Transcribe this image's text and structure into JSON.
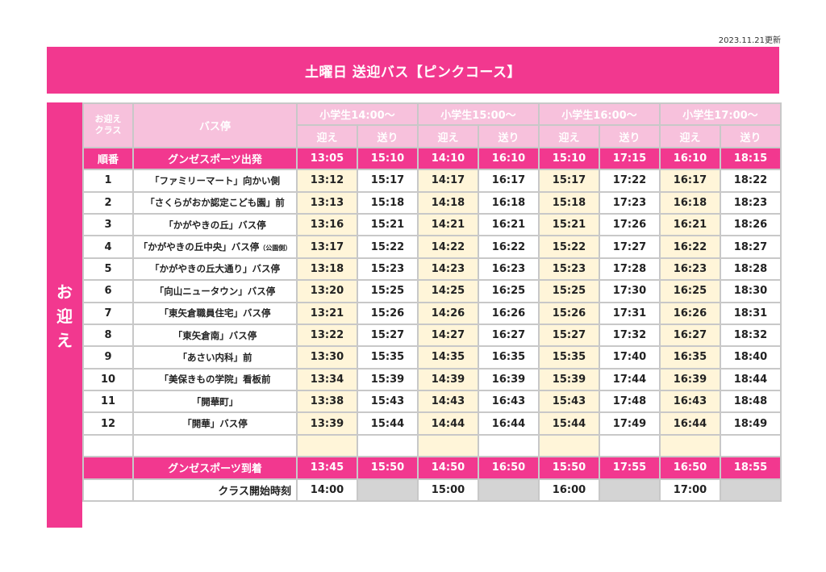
{
  "updated": "2023.11.21更新",
  "title": "土曜日 送迎バス【ピンクコース】",
  "side_label": [
    "お",
    "迎",
    "え"
  ],
  "header": {
    "order_label": "お迎え\nクラス",
    "stop_label": "バス停",
    "classes": [
      "小学生14:00〜",
      "小学生15:00〜",
      "小学生16:00〜",
      "小学生17:00〜"
    ],
    "pickup": "迎え",
    "dropoff": "送り"
  },
  "departure": {
    "num": "順番",
    "stop": "グンゼスポーツ出発",
    "times": [
      "13:05",
      "15:10",
      "14:10",
      "16:10",
      "15:10",
      "17:15",
      "16:10",
      "18:15"
    ]
  },
  "stops": [
    {
      "num": "1",
      "name": "「ファミリーマート」向かい側",
      "note": "",
      "times": [
        "13:12",
        "15:17",
        "14:17",
        "16:17",
        "15:17",
        "17:22",
        "16:17",
        "18:22"
      ]
    },
    {
      "num": "2",
      "name": "「さくらがおか認定こども園」前",
      "note": "",
      "times": [
        "13:13",
        "15:18",
        "14:18",
        "16:18",
        "15:18",
        "17:23",
        "16:18",
        "18:23"
      ]
    },
    {
      "num": "3",
      "name": "「かがやきの丘」バス停",
      "note": "",
      "times": [
        "13:16",
        "15:21",
        "14:21",
        "16:21",
        "15:21",
        "17:26",
        "16:21",
        "18:26"
      ]
    },
    {
      "num": "4",
      "name": "「かがやきの丘中央」バス停",
      "note": "（公園側）",
      "times": [
        "13:17",
        "15:22",
        "14:22",
        "16:22",
        "15:22",
        "17:27",
        "16:22",
        "18:27"
      ]
    },
    {
      "num": "5",
      "name": "「かがやきの丘大通り」バス停",
      "note": "",
      "times": [
        "13:18",
        "15:23",
        "14:23",
        "16:23",
        "15:23",
        "17:28",
        "16:23",
        "18:28"
      ]
    },
    {
      "num": "6",
      "name": "「向山ニュータウン」バス停",
      "note": "",
      "times": [
        "13:20",
        "15:25",
        "14:25",
        "16:25",
        "15:25",
        "17:30",
        "16:25",
        "18:30"
      ]
    },
    {
      "num": "7",
      "name": "「東矢倉職員住宅」バス停",
      "note": "",
      "times": [
        "13:21",
        "15:26",
        "14:26",
        "16:26",
        "15:26",
        "17:31",
        "16:26",
        "18:31"
      ]
    },
    {
      "num": "8",
      "name": "「東矢倉南」バス停",
      "note": "",
      "times": [
        "13:22",
        "15:27",
        "14:27",
        "16:27",
        "15:27",
        "17:32",
        "16:27",
        "18:32"
      ]
    },
    {
      "num": "9",
      "name": "「あさい内科」前",
      "note": "",
      "times": [
        "13:30",
        "15:35",
        "14:35",
        "16:35",
        "15:35",
        "17:40",
        "16:35",
        "18:40"
      ]
    },
    {
      "num": "10",
      "name": "「美保きもの学院」看板前",
      "note": "",
      "times": [
        "13:34",
        "15:39",
        "14:39",
        "16:39",
        "15:39",
        "17:44",
        "16:39",
        "18:44"
      ]
    },
    {
      "num": "11",
      "name": "「開華町」",
      "note": "",
      "times": [
        "13:38",
        "15:43",
        "14:43",
        "16:43",
        "15:43",
        "17:48",
        "16:43",
        "18:48"
      ]
    },
    {
      "num": "12",
      "name": "「開華」バス停",
      "note": "",
      "times": [
        "13:39",
        "15:44",
        "14:44",
        "16:44",
        "15:44",
        "17:49",
        "16:44",
        "18:49"
      ]
    }
  ],
  "arrival": {
    "stop": "グンゼスポーツ到着",
    "times": [
      "13:45",
      "15:50",
      "14:50",
      "16:50",
      "15:50",
      "17:55",
      "16:50",
      "18:55"
    ]
  },
  "class_start": {
    "label": "クラス開始時刻",
    "times": [
      "14:00",
      "15:00",
      "16:00",
      "17:00"
    ]
  },
  "colors": {
    "pink": "#f2388f",
    "light_pink": "#f7c1dc",
    "cream": "#fff5d9",
    "gray": "#d4d4d4"
  }
}
